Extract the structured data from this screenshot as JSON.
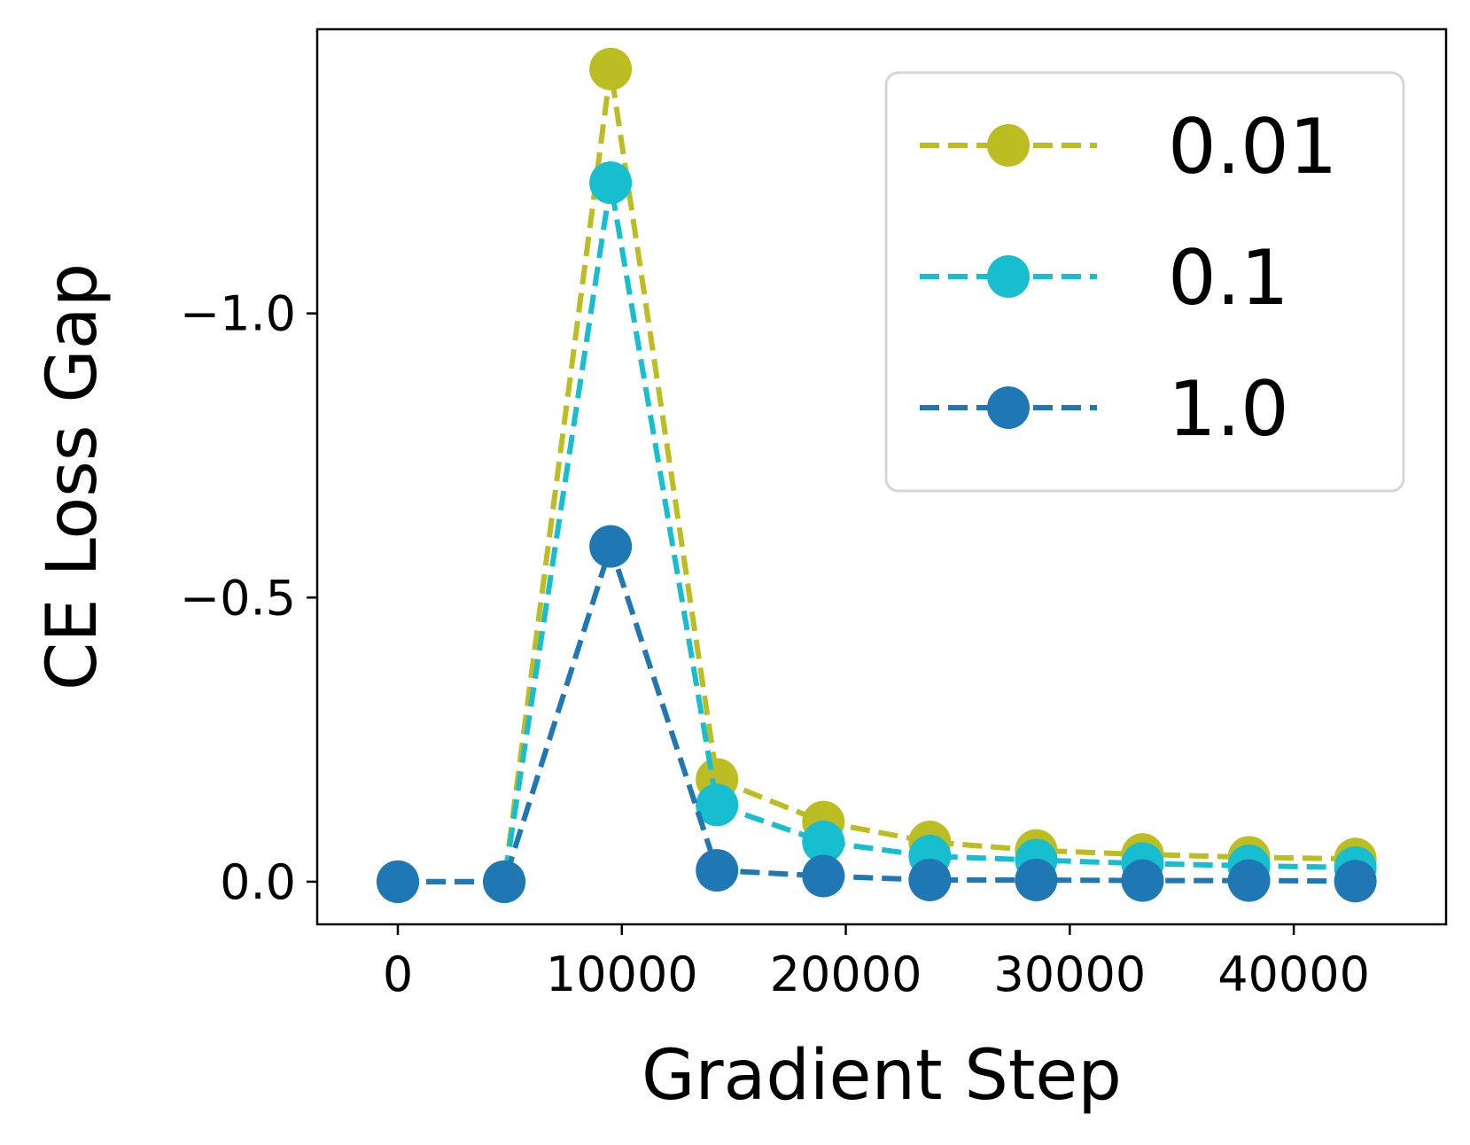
{
  "chart_data": {
    "type": "line",
    "title": "",
    "xlabel": "Gradient Step",
    "ylabel": "CE Loss Gap",
    "y_inverted": true,
    "xlim": [
      -3600,
      46800
    ],
    "ylim": [
      0.075,
      -1.5
    ],
    "x_ticks": [
      0,
      10000,
      20000,
      30000,
      40000
    ],
    "x_tick_labels": [
      "0",
      "10000",
      "20000",
      "30000",
      "40000"
    ],
    "y_ticks": [
      -1.0,
      -0.5,
      0.0
    ],
    "y_tick_labels": [
      "−1.0",
      "−0.5",
      "0.0"
    ],
    "grid": false,
    "legend_position": "top-right",
    "line_style": "dashed",
    "marker": "circle",
    "x": [
      0,
      4750,
      9500,
      14250,
      19000,
      23750,
      28500,
      33250,
      38000,
      42750
    ],
    "series": [
      {
        "name": "0.01",
        "color": "#bcbd22",
        "values": [
          0.0,
          0.0,
          -1.43,
          -0.18,
          -0.105,
          -0.07,
          -0.055,
          -0.048,
          -0.043,
          -0.04
        ]
      },
      {
        "name": "0.1",
        "color": "#17becf",
        "values": [
          0.0,
          0.0,
          -1.23,
          -0.135,
          -0.07,
          -0.045,
          -0.038,
          -0.032,
          -0.028,
          -0.025
        ]
      },
      {
        "name": "1.0",
        "color": "#1f77b4",
        "values": [
          0.0,
          0.0,
          -0.59,
          -0.02,
          -0.01,
          -0.003,
          -0.003,
          -0.002,
          -0.002,
          -0.001
        ]
      }
    ]
  }
}
